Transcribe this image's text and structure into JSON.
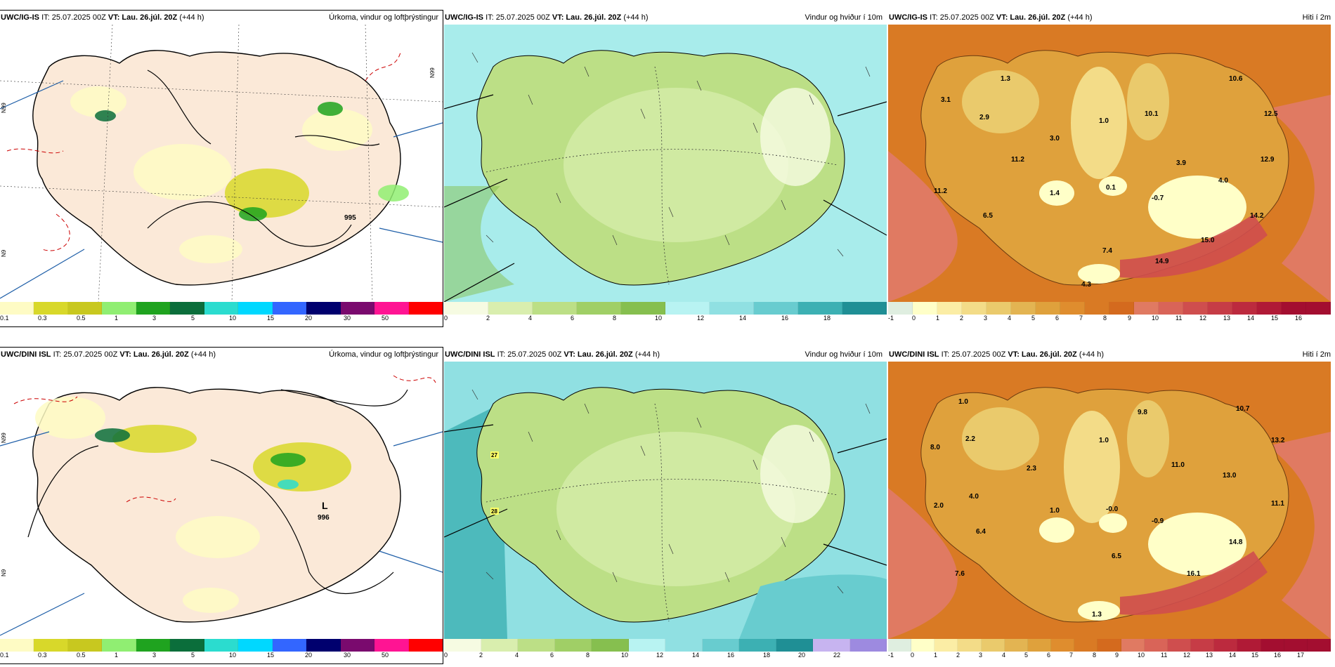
{
  "palettes": {
    "precip": [
      "#fefbc4",
      "#d8d82a",
      "#c8c81f",
      "#90ee72",
      "#1fa31f",
      "#0b6e3b",
      "#2bdccf",
      "#00d8ff",
      "#3366ff",
      "#00006e",
      "#7a0a6e",
      "#ff1493",
      "#ff0000"
    ],
    "wind": [
      "#f6fbe2",
      "#d9eeae",
      "#bcdf86",
      "#a0cf66",
      "#86bf4f",
      "#b8f3f2",
      "#90e0e2",
      "#68cccf",
      "#3cb0b3",
      "#1f8f95",
      "#c7b4f0",
      "#9d8ae0",
      "#6c5acc"
    ],
    "temp": [
      "#dfeee0",
      "#ffffc8",
      "#fbeda5",
      "#f3dc88",
      "#eaca6c",
      "#e3b452",
      "#dfa13c",
      "#df8d2e",
      "#d97a24",
      "#d46a1e",
      "#e07a62",
      "#d96458",
      "#cf4e4e",
      "#c63c46",
      "#bc2a3e",
      "#b01a36",
      "#a30e30"
    ]
  },
  "panels": [
    {
      "model": "UWC/IG-IS",
      "it": "IT: 25.07.2025 00Z",
      "vt": "VT: Lau. 26.júl. 20Z",
      "lead": "(+44 h)",
      "title": "Úrkoma, vindur og loftþrýstingur",
      "ticks": [
        "0.1",
        "0.3",
        "0.5",
        "1",
        "3",
        "5",
        "10",
        "15",
        "20",
        "30",
        "50"
      ],
      "labels": [
        {
          "t": "995"
        }
      ],
      "side_labels": [
        "N99",
        "N99",
        "N9"
      ]
    },
    {
      "model": "UWC/IG-IS",
      "it": "IT: 25.07.2025 00Z",
      "vt": "VT: Lau. 26.júl. 20Z",
      "lead": "(+44 h)",
      "title": "Vindur og hviður í 10m",
      "ticks": [
        "0",
        "2",
        "4",
        "6",
        "8",
        "10",
        "12",
        "14",
        "16",
        "18"
      ],
      "labels": []
    },
    {
      "model": "UWC/IG-IS",
      "it": "IT: 25.07.2025 00Z",
      "vt": "VT: Lau. 26.júl. 20Z",
      "lead": "(+44 h)",
      "title": "Hiti í 2m",
      "ticks": [
        "-1",
        "0",
        "1",
        "2",
        "3",
        "4",
        "5",
        "6",
        "7",
        "8",
        "9",
        "10",
        "11",
        "12",
        "13",
        "14",
        "15",
        "16"
      ],
      "labels": [
        {
          "t": "1.3"
        },
        {
          "t": "3.1"
        },
        {
          "t": "2.9"
        },
        {
          "t": "1.0"
        },
        {
          "t": "10.1"
        },
        {
          "t": "10.6"
        },
        {
          "t": "12.5"
        },
        {
          "t": "3.0"
        },
        {
          "t": "11.2"
        },
        {
          "t": "3.9"
        },
        {
          "t": "12.9"
        },
        {
          "t": "11.2"
        },
        {
          "t": "1.4"
        },
        {
          "t": "0.1"
        },
        {
          "t": "4.0"
        },
        {
          "t": "-0.7"
        },
        {
          "t": "6.5"
        },
        {
          "t": "14.2"
        },
        {
          "t": "15.0"
        },
        {
          "t": "7.4"
        },
        {
          "t": "14.9"
        },
        {
          "t": "4.3"
        }
      ]
    },
    {
      "model": "UWC/DINI ISL",
      "it": "IT: 25.07.2025 00Z",
      "vt": "VT: Lau. 26.júl. 20Z",
      "lead": "(+44 h)",
      "title": "Úrkoma, vindur og loftþrýstingur",
      "ticks": [
        "0.1",
        "0.3",
        "0.5",
        "1",
        "3",
        "5",
        "10",
        "15",
        "20",
        "30",
        "50"
      ],
      "labels": [
        {
          "t": "L"
        },
        {
          "t": "996"
        }
      ],
      "side_labels": [
        "N99",
        "N9"
      ]
    },
    {
      "model": "UWC/DINI ISL",
      "it": "IT: 25.07.2025 00Z",
      "vt": "VT: Lau. 26.júl. 20Z",
      "lead": "(+44 h)",
      "title": "Vindur og hviður í 10m",
      "ticks": [
        "0",
        "2",
        "4",
        "6",
        "8",
        "10",
        "12",
        "14",
        "16",
        "18",
        "20",
        "22"
      ],
      "labels": [
        {
          "t": "27"
        },
        {
          "t": "28"
        }
      ]
    },
    {
      "model": "UWC/DINI ISL",
      "it": "IT: 25.07.2025 00Z",
      "vt": "VT: Lau. 26.júl. 20Z",
      "lead": "(+44 h)",
      "title": "Hiti í 2m",
      "ticks": [
        "-1",
        "0",
        "1",
        "2",
        "3",
        "4",
        "5",
        "6",
        "7",
        "8",
        "9",
        "10",
        "11",
        "12",
        "13",
        "14",
        "15",
        "16",
        "17"
      ],
      "labels": [
        {
          "t": "1.0"
        },
        {
          "t": "8.0"
        },
        {
          "t": "2.2"
        },
        {
          "t": "9.8"
        },
        {
          "t": "1.0"
        },
        {
          "t": "10.7"
        },
        {
          "t": "13.2"
        },
        {
          "t": "2.3"
        },
        {
          "t": "11.0"
        },
        {
          "t": "4.0"
        },
        {
          "t": "13.0"
        },
        {
          "t": "2.0"
        },
        {
          "t": "1.0"
        },
        {
          "t": "-0.0"
        },
        {
          "t": "11.1"
        },
        {
          "t": "-0.9"
        },
        {
          "t": "6.4"
        },
        {
          "t": "14.8"
        },
        {
          "t": "6.5"
        },
        {
          "t": "7.6"
        },
        {
          "t": "16.1"
        },
        {
          "t": "1.3"
        }
      ]
    }
  ]
}
